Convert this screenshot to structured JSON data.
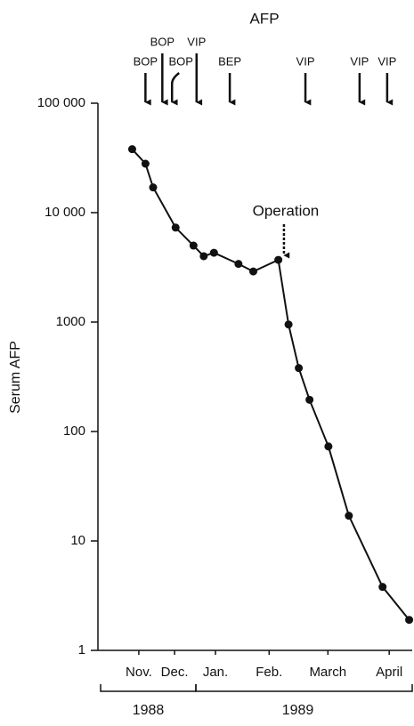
{
  "chart_data": {
    "type": "line",
    "title": "AFP",
    "y_label": "Serum AFP",
    "log_y": true,
    "color": "#111111",
    "x": [
      0.77,
      1.03,
      1.18,
      1.62,
      1.97,
      2.17,
      2.37,
      2.85,
      3.14,
      3.63,
      3.83,
      4.03,
      4.24,
      4.61,
      5.01,
      5.67,
      6.19
    ],
    "values": [
      38000,
      28000,
      17000,
      7300,
      5000,
      4000,
      4300,
      3400,
      2900,
      3700,
      950,
      380,
      195,
      73,
      17,
      3.8,
      1.9
    ],
    "xlim": [
      0.1,
      6.25
    ],
    "xticks": [
      {
        "value": 0.9,
        "label": "Nov."
      },
      {
        "value": 1.6,
        "label": "Dec."
      },
      {
        "value": 2.4,
        "label": "Jan."
      },
      {
        "value": 3.45,
        "label": "Feb."
      },
      {
        "value": 4.6,
        "label": "March"
      },
      {
        "value": 5.8,
        "label": "April"
      }
    ],
    "ylim": [
      1,
      100000
    ],
    "yticks": [
      1,
      10,
      100,
      1000,
      {
        "value": 10000,
        "label": "10 000"
      },
      {
        "value": 100000,
        "label": "100 000"
      }
    ],
    "x_groups": [
      "1988",
      "1989"
    ],
    "treatments": [
      {
        "text": "BOP",
        "x": 1.03
      },
      {
        "text": "BOP",
        "x": 1.36
      },
      {
        "text": "BOP",
        "x": 1.55
      },
      {
        "text": "VIP",
        "x": 2.03
      },
      {
        "text": "BEP",
        "x": 2.68
      },
      {
        "text": "VIP",
        "x": 4.16
      },
      {
        "text": "VIP",
        "x": 5.22
      },
      {
        "text": "VIP",
        "x": 5.76
      }
    ],
    "annotation": {
      "text": "Operation",
      "x": 3.74
    }
  }
}
